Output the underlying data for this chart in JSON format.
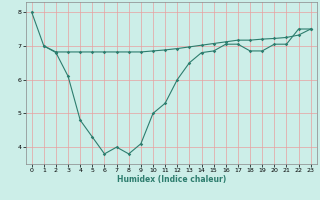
{
  "line1_x": [
    0,
    1,
    2,
    3,
    4,
    5,
    6,
    7,
    8,
    9,
    10,
    11,
    12,
    13,
    14,
    15,
    16,
    17,
    18,
    19,
    20,
    21,
    22,
    23
  ],
  "line1_y": [
    8.0,
    7.0,
    6.8,
    6.1,
    4.8,
    4.3,
    3.8,
    4.0,
    3.8,
    4.1,
    5.0,
    5.3,
    6.0,
    6.5,
    6.8,
    6.85,
    7.05,
    7.05,
    6.85,
    6.85,
    7.05,
    7.05,
    7.5,
    7.5
  ],
  "line2_x": [
    1,
    2,
    3,
    4,
    5,
    6,
    7,
    8,
    9,
    10,
    11,
    12,
    13,
    14,
    15,
    16,
    17,
    18,
    19,
    20,
    21,
    22,
    23
  ],
  "line2_y": [
    7.0,
    6.82,
    6.82,
    6.82,
    6.82,
    6.82,
    6.82,
    6.82,
    6.82,
    6.85,
    6.88,
    6.92,
    6.97,
    7.02,
    7.07,
    7.12,
    7.17,
    7.17,
    7.2,
    7.22,
    7.25,
    7.32,
    7.5
  ],
  "color": "#2d7d6e",
  "bg_color": "#cceee8",
  "grid_color": "#e8a0a0",
  "xlabel": "Humidex (Indice chaleur)",
  "ylim": [
    3.5,
    8.3
  ],
  "xlim": [
    -0.5,
    23.5
  ],
  "yticks": [
    4,
    5,
    6,
    7,
    8
  ],
  "xticks": [
    0,
    1,
    2,
    3,
    4,
    5,
    6,
    7,
    8,
    9,
    10,
    11,
    12,
    13,
    14,
    15,
    16,
    17,
    18,
    19,
    20,
    21,
    22,
    23
  ]
}
